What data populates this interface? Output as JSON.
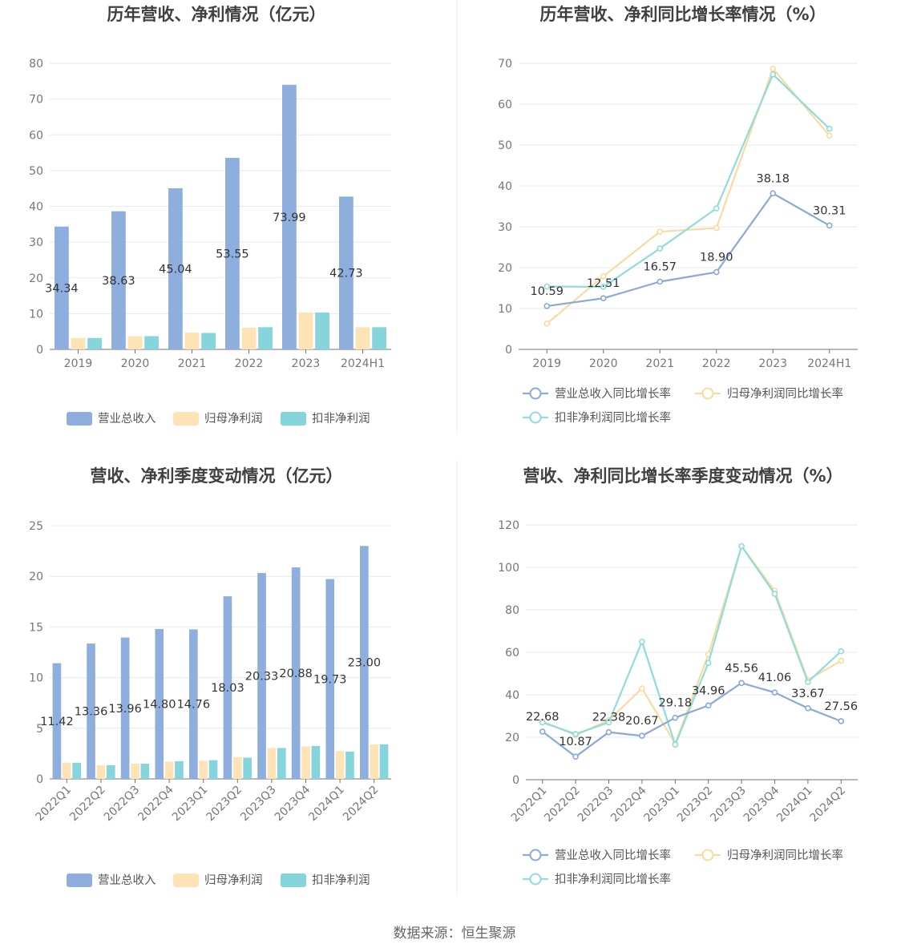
{
  "colors": {
    "revenue": "#8eaede",
    "net_profit": "#fde3b5",
    "deducted_profit": "#86d4dc",
    "net_profit_line": "#f9dba1",
    "deducted_profit_line": "#8fdcdc",
    "revenue_line": "#8aa9d7",
    "grid": "#e6e9f0",
    "axis": "#6e7079"
  },
  "source": "数据来源：恒生聚源",
  "chart_data": [
    {
      "type": "bar",
      "title": "历年营收、净利情况（亿元）",
      "categories": [
        "2019",
        "2020",
        "2021",
        "2022",
        "2023",
        "2024H1"
      ],
      "ylim": [
        0,
        80
      ],
      "yticks": [
        0,
        10,
        20,
        30,
        40,
        50,
        60,
        70,
        80
      ],
      "grid": true,
      "legend_position": "bottom",
      "series": [
        {
          "name": "营业总收入",
          "values": [
            34.34,
            38.63,
            45.04,
            53.55,
            73.99,
            42.73
          ],
          "labels": [
            "34.34",
            "38.63",
            "45.04",
            "53.55",
            "73.99",
            "42.73"
          ]
        },
        {
          "name": "归母净利润",
          "values": [
            3.2,
            3.7,
            4.7,
            6.1,
            10.3,
            6.2
          ]
        },
        {
          "name": "扣非净利润",
          "values": [
            3.2,
            3.7,
            4.6,
            6.2,
            10.3,
            6.2
          ]
        }
      ]
    },
    {
      "type": "line",
      "title": "历年营收、净利同比增长率情况（%）",
      "categories": [
        "2019",
        "2020",
        "2021",
        "2022",
        "2023",
        "2024H1"
      ],
      "ylim": [
        0,
        70
      ],
      "yticks": [
        0,
        10,
        20,
        30,
        40,
        50,
        60,
        70
      ],
      "grid": true,
      "legend_position": "bottom",
      "series": [
        {
          "name": "营业总收入同比增长率",
          "values": [
            10.59,
            12.51,
            16.57,
            18.9,
            38.18,
            30.31
          ],
          "labels": [
            "10.59",
            "12.51",
            "16.57",
            "18.90",
            "38.18",
            "30.31"
          ]
        },
        {
          "name": "归母净利润同比增长率",
          "values": [
            6.3,
            17.9,
            28.8,
            29.7,
            68.7,
            52.3
          ]
        },
        {
          "name": "扣非净利润同比增长率",
          "values": [
            15.4,
            15.3,
            24.7,
            34.5,
            67.3,
            54.0
          ]
        }
      ]
    },
    {
      "type": "bar",
      "title": "营收、净利季度变动情况（亿元）",
      "categories": [
        "2022Q1",
        "2022Q2",
        "2022Q3",
        "2022Q4",
        "2023Q1",
        "2023Q2",
        "2023Q3",
        "2023Q4",
        "2024Q1",
        "2024Q2"
      ],
      "ylim": [
        0,
        25
      ],
      "yticks": [
        0,
        5,
        10,
        15,
        20,
        25
      ],
      "grid": true,
      "legend_position": "bottom",
      "series": [
        {
          "name": "营业总收入",
          "values": [
            11.42,
            13.36,
            13.96,
            14.8,
            14.76,
            18.03,
            20.33,
            20.88,
            19.73,
            23.0
          ],
          "labels": [
            "11.42",
            "13.36",
            "13.96",
            "14.80",
            "14.76",
            "18.03",
            "20.33",
            "20.88",
            "19.73",
            "23.00"
          ]
        },
        {
          "name": "归母净利润",
          "values": [
            1.6,
            1.35,
            1.5,
            1.7,
            1.8,
            2.15,
            3.05,
            3.2,
            2.75,
            3.4
          ]
        },
        {
          "name": "扣非净利润",
          "values": [
            1.6,
            1.35,
            1.5,
            1.75,
            1.85,
            2.1,
            3.05,
            3.25,
            2.7,
            3.4
          ]
        }
      ]
    },
    {
      "type": "line",
      "title": "营收、净利同比增长率季度变动情况（%）",
      "categories": [
        "2022Q1",
        "2022Q2",
        "2022Q3",
        "2022Q4",
        "2023Q1",
        "2023Q2",
        "2023Q3",
        "2023Q4",
        "2024Q1",
        "2024Q2"
      ],
      "ylim": [
        0,
        120
      ],
      "yticks": [
        0,
        20,
        40,
        60,
        80,
        100,
        120
      ],
      "grid": true,
      "legend_position": "bottom",
      "series": [
        {
          "name": "营业总收入同比增长率",
          "values": [
            22.68,
            10.87,
            22.38,
            20.67,
            29.18,
            34.96,
            45.56,
            41.06,
            33.67,
            27.56
          ],
          "labels": [
            "22.68",
            "10.87",
            "22.38",
            "20.67",
            "29.18",
            "34.96",
            "45.56",
            "41.06",
            "33.67",
            "27.56"
          ]
        },
        {
          "name": "归母净利润同比增长率",
          "values": [
            27.5,
            21.0,
            28.0,
            43.0,
            17.0,
            59.0,
            110.0,
            89.0,
            47.0,
            56.0
          ]
        },
        {
          "name": "扣非净利润同比增长率",
          "values": [
            27.0,
            21.5,
            27.0,
            65.0,
            16.5,
            55.0,
            110.0,
            87.5,
            46.0,
            60.5
          ]
        }
      ]
    }
  ]
}
